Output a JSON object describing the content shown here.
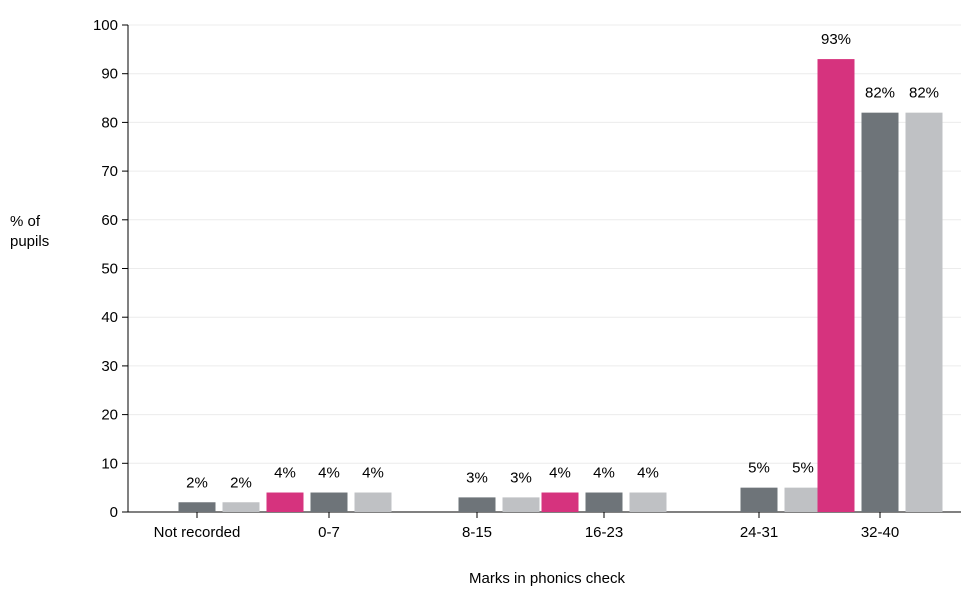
{
  "chart_data": {
    "type": "bar",
    "xlabel": "Marks in phonics check",
    "ylabel_lines": [
      "% of",
      "pupils"
    ],
    "ylim": [
      0,
      100
    ],
    "yticks": [
      0,
      10,
      20,
      30,
      40,
      50,
      60,
      70,
      80,
      90,
      100
    ],
    "grid": true,
    "categories": [
      "Not recorded",
      "0-7",
      "8-15",
      "16-23",
      "24-31",
      "32-40"
    ],
    "series": [
      {
        "color": "#d6337e",
        "values": [
          0,
          4,
          0,
          4,
          0,
          93
        ],
        "labels": [
          "",
          "4%",
          "",
          "4%",
          "",
          "93%"
        ]
      },
      {
        "color": "#6e7479",
        "values": [
          2,
          4,
          3,
          4,
          5,
          82
        ],
        "labels": [
          "2%",
          "4%",
          "3%",
          "4%",
          "5%",
          "82%"
        ]
      },
      {
        "color": "#bfc1c4",
        "values": [
          2,
          4,
          3,
          4,
          5,
          82
        ],
        "labels": [
          "2%",
          "4%",
          "3%",
          "4%",
          "5%",
          "82%"
        ]
      }
    ]
  }
}
